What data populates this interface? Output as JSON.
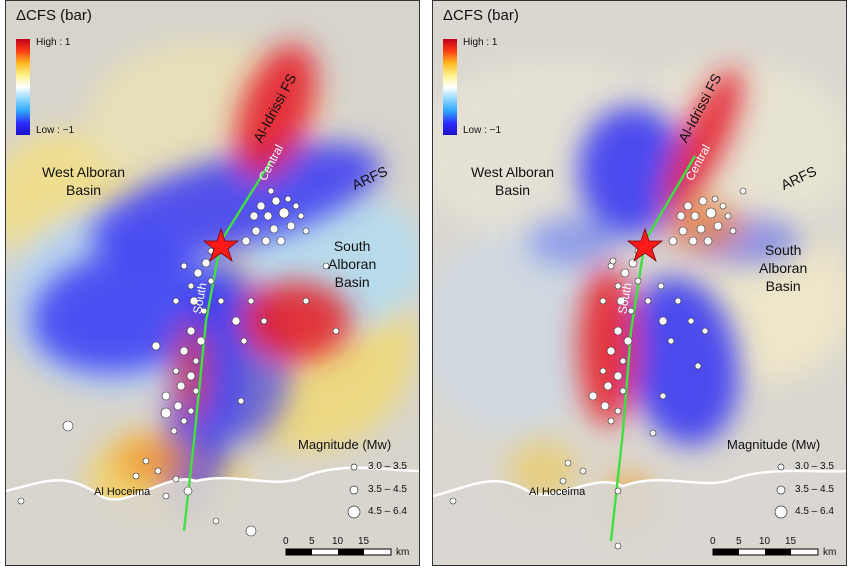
{
  "panels": [
    {
      "id": "left",
      "title": "ΔCFS (bar)",
      "colorbar": {
        "high": "High : 1",
        "low": "Low : −1"
      },
      "labels": {
        "west_basin": "West Alboran\nBasin",
        "south_basin": "South\nAlboran\nBasin",
        "fault_system": "Al-Idrissi FS",
        "arfs": "ARFS",
        "central": "Central",
        "south_segment": "South",
        "town": "Al Hoceima"
      },
      "legend": {
        "title": "Magnitude (Mw)",
        "classes": [
          "3.0 – 3.5",
          "3.5 – 4.5",
          "4.5 – 6.4"
        ]
      },
      "scale": {
        "ticks": [
          "0",
          "5",
          "10",
          "15"
        ],
        "unit": "km"
      }
    },
    {
      "id": "right",
      "title": "ΔCFS (bar)",
      "colorbar": {
        "high": "High : 1",
        "low": "Low : −1"
      },
      "labels": {
        "west_basin": "West Alboran\nBasin",
        "south_basin": "South\nAlboran\nBasin",
        "fault_system": "Al-Idrissi FS",
        "arfs": "ARFS",
        "central": "Central",
        "south_segment": "South",
        "town": "Al Hoceima"
      },
      "legend": {
        "title": "Magnitude (Mw)",
        "classes": [
          "3.0 – 3.5",
          "3.5 – 4.5",
          "4.5 – 6.4"
        ]
      },
      "scale": {
        "ticks": [
          "0",
          "5",
          "10",
          "15"
        ],
        "unit": "km"
      }
    }
  ],
  "colors": {
    "high": "#d6002a",
    "low": "#2b2bff",
    "fault": "#3fe03f",
    "epicenter": "#ff1a1a"
  }
}
